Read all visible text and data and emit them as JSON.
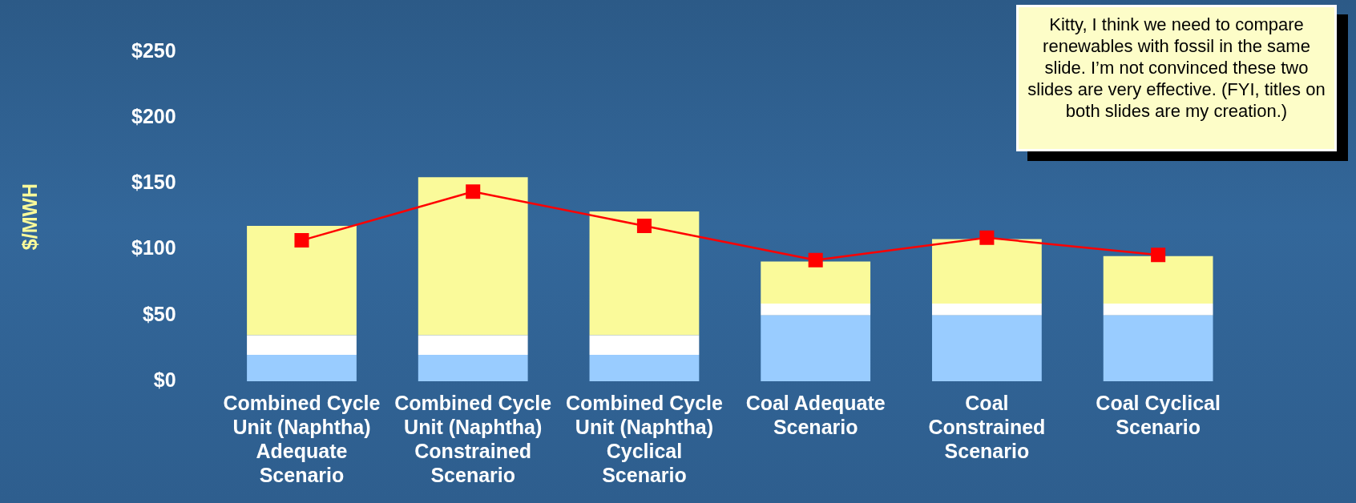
{
  "chart_data": {
    "type": "bar",
    "stacked": true,
    "ylabel": "$/MWH",
    "categories": [
      "Combined Cycle Unit (Naphtha) Adequate Scenario",
      "Combined Cycle Unit (Naphtha) Constrained Scenario",
      "Combined Cycle Unit (Naphtha) Cyclical Scenario",
      "Coal Adequate Scenario",
      "Coal Constrained Scenario",
      "Coal Cyclical Scenario"
    ],
    "series": [
      {
        "color": "#99ccff",
        "values": [
          20,
          20,
          20,
          50,
          50,
          50
        ]
      },
      {
        "color": "#ffffff",
        "values": [
          15,
          15,
          15,
          9,
          9,
          9
        ]
      },
      {
        "color": "#fafa9a",
        "values": [
          83,
          120,
          94,
          32,
          49,
          36
        ]
      },
      {
        "type": "line",
        "color": "#ff0000",
        "marker": "square",
        "values": [
          107,
          144,
          118,
          92,
          109,
          96
        ]
      }
    ],
    "ylim": [
      0,
      250
    ],
    "yticks": [
      {
        "value": 0,
        "label": "$0"
      },
      {
        "value": 50,
        "label": "$50"
      },
      {
        "value": 100,
        "label": "$100"
      },
      {
        "value": 150,
        "label": "$150"
      },
      {
        "value": 200,
        "label": "$200"
      },
      {
        "value": 250,
        "label": "$250"
      }
    ],
    "grid": false,
    "legend": false,
    "annotations": [
      "Kitty, I think we need to compare renewables with fossil in the same slide. I’m not convinced these two slides are very effective. (FYI, titles on both slides are my creation.)"
    ]
  }
}
